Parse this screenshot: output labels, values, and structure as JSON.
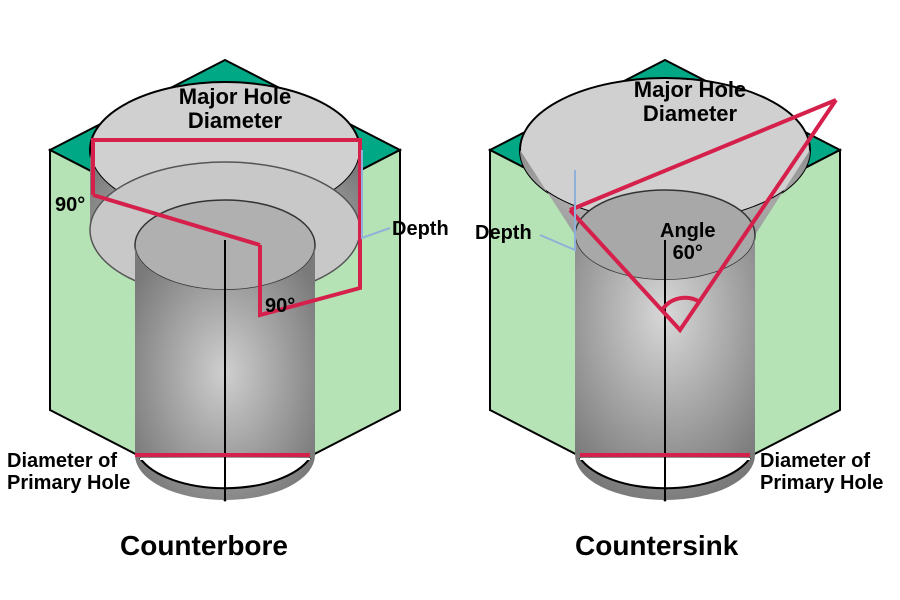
{
  "colors": {
    "top_face": "#00a885",
    "side_face": "#b5e3b5",
    "hole_outer": "#d0d0d0",
    "hole_inner": "#808080",
    "outline_red": "#d6204c",
    "outline_blue": "#8fb0d8",
    "outline_block": "#000000",
    "text": "#000000",
    "background": "#ffffff"
  },
  "counterbore": {
    "title": "Counterbore",
    "labels": {
      "major_hole": "Major Hole\nDiameter",
      "angle_left": "90°",
      "angle_right": "90°",
      "depth": "Depth",
      "primary": "Diameter of\nPrimary Hole"
    },
    "angles_deg": 90,
    "title_fontsize": 28,
    "label_fontsize": 20
  },
  "countersink": {
    "title": "Countersink",
    "labels": {
      "major_hole": "Major Hole\nDiameter",
      "angle": "Angle\n60°",
      "depth": "Depth",
      "primary": "Diameter of\nPrimary Hole"
    },
    "angle_deg": 60,
    "title_fontsize": 28,
    "label_fontsize": 20
  },
  "stroke": {
    "red_width": 4,
    "blue_width": 2,
    "block_width": 2
  }
}
